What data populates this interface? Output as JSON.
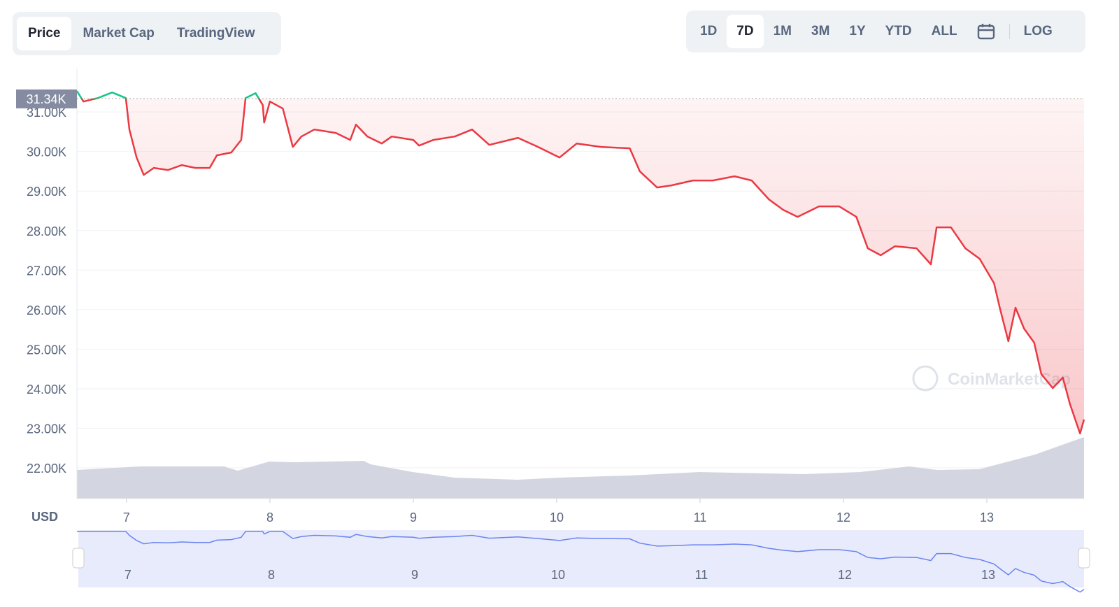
{
  "ui": {
    "tabs": [
      "Price",
      "Market Cap",
      "TradingView"
    ],
    "ranges": [
      "1D",
      "7D",
      "1M",
      "3M",
      "1Y",
      "YTD",
      "ALL"
    ],
    "log": "LOG",
    "currency": "USD",
    "watermark": "CoinMarketCap"
  },
  "chart_data": {
    "type": "line",
    "x": [
      6.654,
      6.7,
      6.8,
      6.9,
      6.995,
      7.02,
      7.07,
      7.12,
      7.19,
      7.29,
      7.385,
      7.48,
      7.58,
      7.63,
      7.73,
      7.8,
      7.83,
      7.9,
      7.95,
      7.96,
      8.0,
      8.09,
      8.16,
      8.22,
      8.31,
      8.46,
      8.56,
      8.6,
      8.68,
      8.78,
      8.85,
      9.0,
      9.04,
      9.14,
      9.29,
      9.41,
      9.53,
      9.73,
      9.87,
      10.02,
      10.14,
      10.31,
      10.51,
      10.58,
      10.7,
      10.8,
      10.95,
      11.09,
      11.24,
      11.36,
      11.48,
      11.58,
      11.68,
      11.83,
      11.97,
      12.09,
      12.17,
      12.26,
      12.36,
      12.51,
      12.61,
      12.65,
      12.75,
      12.85,
      12.95,
      13.05,
      13.09,
      13.15,
      13.2,
      13.26,
      13.33,
      13.38,
      13.46,
      13.53,
      13.58,
      13.65,
      13.678
    ],
    "series": [
      {
        "name": "Price",
        "color": "#ea3943",
        "values": [
          31530,
          31265,
          31354,
          31495,
          31354,
          30558,
          29850,
          29409,
          29586,
          29533,
          29656,
          29586,
          29586,
          29904,
          29975,
          30293,
          31354,
          31477,
          31177,
          30735,
          31265,
          31088,
          30116,
          30381,
          30558,
          30470,
          30293,
          30682,
          30381,
          30204,
          30381,
          30293,
          30151,
          30293,
          30381,
          30558,
          30169,
          30346,
          30116,
          29850,
          30204,
          30116,
          30081,
          29497,
          29091,
          29144,
          29267,
          29267,
          29374,
          29267,
          28790,
          28525,
          28348,
          28613,
          28613,
          28348,
          27552,
          27376,
          27605,
          27552,
          27146,
          28083,
          28083,
          27552,
          27287,
          26668,
          26050,
          25201,
          26050,
          25519,
          25165,
          24370,
          24016,
          24282,
          23610,
          22867,
          23220
        ]
      }
    ],
    "up_color": "#16c784",
    "reference": {
      "value": 31340,
      "label": "31.34K"
    },
    "xlim": [
      6.654,
      13.678
    ],
    "xticks": [
      7,
      8,
      9,
      10,
      11,
      12,
      13
    ],
    "ylim": [
      21220,
      32100
    ],
    "yticks": [
      {
        "value": 22000,
        "label": "22.00K"
      },
      {
        "value": 23000,
        "label": "23.00K"
      },
      {
        "value": 24000,
        "label": "24.00K"
      },
      {
        "value": 25000,
        "label": "25.00K"
      },
      {
        "value": 26000,
        "label": "26.00K"
      },
      {
        "value": 27000,
        "label": "27.00K"
      },
      {
        "value": 28000,
        "label": "28.00K"
      },
      {
        "value": 29000,
        "label": "29.00K"
      },
      {
        "value": 30000,
        "label": "30.00K"
      },
      {
        "value": 31000,
        "label": "31.00K"
      }
    ],
    "grid": true
  }
}
